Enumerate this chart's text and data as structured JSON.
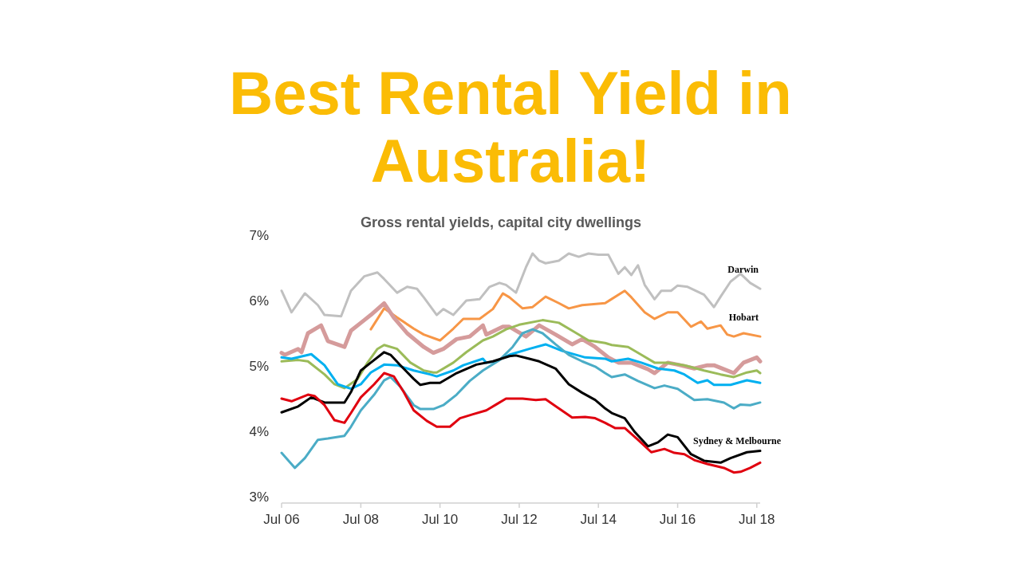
{
  "chart_data": {
    "type": "line",
    "title": "Best Rental Yield in Australia!",
    "subtitle": "Gross rental yields, capital city dwellings",
    "xlim": [
      "2006-07",
      "2018-08"
    ],
    "xticks": [
      {
        "value": "2006-07",
        "label": "Jul 06"
      },
      {
        "value": "2008-07",
        "label": "Jul 08"
      },
      {
        "value": "2010-07",
        "label": "Jul 10"
      },
      {
        "value": "2012-07",
        "label": "Jul 12"
      },
      {
        "value": "2014-07",
        "label": "Jul 14"
      },
      {
        "value": "2016-07",
        "label": "Jul 16"
      },
      {
        "value": "2018-07",
        "label": "Jul 18"
      }
    ],
    "ylim": [
      3,
      7
    ],
    "yticks": [
      {
        "value": 3,
        "label": "3%"
      },
      {
        "value": 4,
        "label": "4%"
      },
      {
        "value": 5,
        "label": "5%"
      },
      {
        "value": 6,
        "label": "6%"
      },
      {
        "value": 7,
        "label": "7%"
      }
    ],
    "grid": false,
    "marker": "none",
    "line_style": "solid",
    "annotations": [
      "Sydney & Melbourne"
    ],
    "series": [
      {
        "name": "Darwin",
        "color": "#c0c0c0",
        "x": [
          "2006-07",
          "2006-10",
          "2007-02",
          "2007-06",
          "2007-08",
          "2008-01",
          "2008-04",
          "2008-08",
          "2008-12",
          "2009-02",
          "2009-06",
          "2009-09",
          "2009-12",
          "2010-02",
          "2010-06",
          "2010-08",
          "2010-11",
          "2011-03",
          "2011-07",
          "2011-10",
          "2012-01",
          "2012-03",
          "2012-06",
          "2012-09",
          "2012-11",
          "2013-01",
          "2013-03",
          "2013-07",
          "2013-10",
          "2014-01",
          "2014-04",
          "2014-07",
          "2014-10",
          "2015-01",
          "2015-03",
          "2015-05",
          "2015-07",
          "2015-09",
          "2015-12",
          "2016-02",
          "2016-05",
          "2016-07",
          "2016-10",
          "2017-03",
          "2017-06",
          "2017-08",
          "2017-11",
          "2018-02",
          "2018-05",
          "2018-08"
        ],
        "values": [
          6.15,
          5.82,
          6.11,
          5.93,
          5.78,
          5.76,
          6.15,
          6.37,
          6.43,
          6.33,
          6.12,
          6.21,
          6.18,
          6.05,
          5.78,
          5.87,
          5.78,
          6.0,
          6.02,
          6.21,
          6.27,
          6.24,
          6.12,
          6.51,
          6.72,
          6.61,
          6.57,
          6.61,
          6.72,
          6.67,
          6.72,
          6.7,
          6.7,
          6.41,
          6.51,
          6.39,
          6.54,
          6.24,
          6.02,
          6.15,
          6.15,
          6.23,
          6.21,
          6.09,
          5.9,
          6.06,
          6.29,
          6.41,
          6.27,
          6.18
        ]
      },
      {
        "name": "Hobart",
        "color": "#f79646",
        "x": [
          "2008-10",
          "2009-02",
          "2009-06",
          "2009-11",
          "2010-02",
          "2010-07",
          "2010-11",
          "2011-02",
          "2011-07",
          "2011-11",
          "2012-02",
          "2012-04",
          "2012-08",
          "2012-11",
          "2013-03",
          "2013-07",
          "2013-10",
          "2014-02",
          "2014-09",
          "2015-03",
          "2015-05",
          "2015-09",
          "2015-12",
          "2016-04",
          "2016-07",
          "2016-11",
          "2017-02",
          "2017-04",
          "2017-08",
          "2017-10",
          "2017-12",
          "2018-03",
          "2018-08"
        ],
        "values": [
          5.56,
          5.88,
          5.74,
          5.57,
          5.48,
          5.39,
          5.57,
          5.72,
          5.72,
          5.87,
          6.11,
          6.05,
          5.88,
          5.9,
          6.06,
          5.96,
          5.88,
          5.93,
          5.96,
          6.15,
          6.05,
          5.82,
          5.72,
          5.82,
          5.82,
          5.6,
          5.68,
          5.57,
          5.62,
          5.48,
          5.45,
          5.5,
          5.45
        ]
      },
      {
        "color": "#d59b9b",
        "x": [
          "2006-07",
          "2006-08",
          "2006-12",
          "2007-01",
          "2007-03",
          "2007-07",
          "2007-09",
          "2008-02",
          "2008-04",
          "2008-08",
          "2008-10",
          "2009-02",
          "2009-05",
          "2009-09",
          "2010-02",
          "2010-05",
          "2010-08",
          "2010-12",
          "2011-04",
          "2011-08",
          "2011-09",
          "2012-02",
          "2012-04",
          "2012-09",
          "2013-01",
          "2013-06",
          "2013-11",
          "2014-02",
          "2014-06",
          "2014-10",
          "2015-01",
          "2015-05",
          "2015-10",
          "2015-12",
          "2016-04",
          "2016-07",
          "2016-12",
          "2017-04",
          "2017-06",
          "2017-09",
          "2017-12",
          "2018-03",
          "2018-07",
          "2018-08"
        ],
        "values": [
          5.2,
          5.17,
          5.26,
          5.21,
          5.5,
          5.62,
          5.38,
          5.29,
          5.54,
          5.7,
          5.78,
          5.96,
          5.74,
          5.5,
          5.29,
          5.2,
          5.26,
          5.41,
          5.45,
          5.62,
          5.48,
          5.6,
          5.6,
          5.45,
          5.62,
          5.48,
          5.33,
          5.41,
          5.29,
          5.13,
          5.05,
          5.05,
          4.95,
          4.89,
          5.05,
          5.02,
          4.96,
          5.01,
          5.01,
          4.95,
          4.89,
          5.05,
          5.13,
          5.07
        ]
      },
      {
        "color": "#9bbb59",
        "x": [
          "2006-07",
          "2006-12",
          "2007-03",
          "2007-08",
          "2007-11",
          "2008-02",
          "2008-06",
          "2008-09",
          "2008-12",
          "2009-02",
          "2009-06",
          "2009-10",
          "2010-02",
          "2010-05",
          "2010-06",
          "2010-11",
          "2011-03",
          "2011-08",
          "2011-11",
          "2012-03",
          "2012-07",
          "2013-02",
          "2013-07",
          "2013-11",
          "2014-04",
          "2014-09",
          "2014-11",
          "2015-04",
          "2015-08",
          "2015-12",
          "2016-04",
          "2016-09",
          "2017-03",
          "2017-08",
          "2017-12",
          "2018-04",
          "2018-07",
          "2018-08"
        ],
        "values": [
          5.07,
          5.09,
          5.07,
          4.87,
          4.72,
          4.66,
          4.8,
          5.05,
          5.26,
          5.32,
          5.26,
          5.05,
          4.93,
          4.9,
          4.9,
          5.05,
          5.21,
          5.39,
          5.45,
          5.56,
          5.63,
          5.7,
          5.66,
          5.54,
          5.39,
          5.35,
          5.32,
          5.29,
          5.17,
          5.05,
          5.05,
          5.01,
          4.93,
          4.87,
          4.83,
          4.9,
          4.93,
          4.89
        ]
      },
      {
        "color": "#00b0f0",
        "x": [
          "2006-07",
          "2006-10",
          "2007-04",
          "2007-08",
          "2007-12",
          "2008-04",
          "2008-07",
          "2008-10",
          "2009-02",
          "2009-06",
          "2009-11",
          "2010-04",
          "2010-06",
          "2010-11",
          "2011-02",
          "2011-08",
          "2011-09",
          "2011-12",
          "2012-04",
          "2012-10",
          "2013-03",
          "2013-08",
          "2014-03",
          "2014-09",
          "2014-11",
          "2015-04",
          "2015-08",
          "2016-01",
          "2016-06",
          "2016-09",
          "2017-01",
          "2017-04",
          "2017-06",
          "2017-11",
          "2018-04",
          "2018-08"
        ],
        "values": [
          5.13,
          5.11,
          5.18,
          5.01,
          4.72,
          4.65,
          4.72,
          4.9,
          5.02,
          5.01,
          4.93,
          4.87,
          4.84,
          4.93,
          5.01,
          5.11,
          5.05,
          5.07,
          5.17,
          5.26,
          5.33,
          5.23,
          5.13,
          5.11,
          5.07,
          5.11,
          5.05,
          4.96,
          4.93,
          4.87,
          4.74,
          4.78,
          4.71,
          4.71,
          4.78,
          4.74
        ]
      },
      {
        "color": "#4bacc6",
        "x": [
          "2006-07",
          "2006-11",
          "2007-02",
          "2007-06",
          "2007-09",
          "2008-02",
          "2008-04",
          "2008-07",
          "2008-11",
          "2009-02",
          "2009-04",
          "2009-07",
          "2009-11",
          "2010-01",
          "2010-05",
          "2010-08",
          "2010-12",
          "2011-04",
          "2011-08",
          "2012-01",
          "2012-05",
          "2012-08",
          "2012-11",
          "2013-02",
          "2013-06",
          "2013-10",
          "2014-02",
          "2014-06",
          "2014-09",
          "2014-11",
          "2015-03",
          "2015-07",
          "2015-12",
          "2016-03",
          "2016-07",
          "2016-12",
          "2017-04",
          "2017-09",
          "2017-12",
          "2018-02",
          "2018-05",
          "2018-08"
        ],
        "values": [
          3.67,
          3.44,
          3.59,
          3.87,
          3.89,
          3.93,
          4.07,
          4.32,
          4.56,
          4.78,
          4.83,
          4.68,
          4.4,
          4.34,
          4.34,
          4.4,
          4.56,
          4.77,
          4.93,
          5.09,
          5.29,
          5.5,
          5.56,
          5.5,
          5.33,
          5.17,
          5.07,
          4.99,
          4.89,
          4.83,
          4.87,
          4.77,
          4.66,
          4.7,
          4.65,
          4.48,
          4.49,
          4.44,
          4.35,
          4.41,
          4.4,
          4.44
        ]
      },
      {
        "color": "#000000",
        "x": [
          "2006-07",
          "2006-12",
          "2007-04",
          "2007-08",
          "2008-02",
          "2008-04",
          "2008-07",
          "2008-10",
          "2009-02",
          "2009-04",
          "2009-07",
          "2009-11",
          "2010-01",
          "2010-04",
          "2010-07",
          "2010-12",
          "2011-06",
          "2011-11",
          "2012-04",
          "2012-06",
          "2012-10",
          "2013-01",
          "2013-06",
          "2013-10",
          "2014-02",
          "2014-06",
          "2014-09",
          "2014-11",
          "2015-03",
          "2015-06",
          "2015-10",
          "2016-01",
          "2016-04",
          "2016-07",
          "2016-11",
          "2017-03",
          "2017-08",
          "2017-11",
          "2018-04",
          "2018-08"
        ],
        "values": [
          4.29,
          4.38,
          4.52,
          4.44,
          4.44,
          4.6,
          4.93,
          5.05,
          5.21,
          5.17,
          5.01,
          4.8,
          4.71,
          4.74,
          4.74,
          4.89,
          5.02,
          5.07,
          5.15,
          5.16,
          5.11,
          5.07,
          4.96,
          4.72,
          4.59,
          4.48,
          4.35,
          4.28,
          4.2,
          3.99,
          3.77,
          3.83,
          3.95,
          3.91,
          3.65,
          3.55,
          3.52,
          3.59,
          3.68,
          3.7
        ]
      },
      {
        "color": "#e0000f",
        "x": [
          "2006-07",
          "2006-10",
          "2007-03",
          "2007-05",
          "2007-08",
          "2007-11",
          "2008-02",
          "2008-04",
          "2008-07",
          "2008-11",
          "2009-02",
          "2009-05",
          "2009-08",
          "2009-11",
          "2010-03",
          "2010-06",
          "2010-10",
          "2011-01",
          "2011-05",
          "2011-09",
          "2011-12",
          "2012-03",
          "2012-08",
          "2012-12",
          "2013-03",
          "2013-07",
          "2013-11",
          "2014-03",
          "2014-06",
          "2014-09",
          "2014-12",
          "2015-03",
          "2015-07",
          "2015-11",
          "2016-03",
          "2016-06",
          "2016-09",
          "2016-12",
          "2017-04",
          "2017-09",
          "2017-12",
          "2018-02",
          "2018-05",
          "2018-08"
        ],
        "values": [
          4.5,
          4.46,
          4.56,
          4.54,
          4.4,
          4.17,
          4.13,
          4.28,
          4.52,
          4.72,
          4.89,
          4.84,
          4.6,
          4.32,
          4.16,
          4.07,
          4.07,
          4.2,
          4.26,
          4.32,
          4.41,
          4.5,
          4.5,
          4.48,
          4.49,
          4.35,
          4.21,
          4.22,
          4.2,
          4.13,
          4.05,
          4.05,
          3.87,
          3.68,
          3.73,
          3.67,
          3.65,
          3.56,
          3.5,
          3.44,
          3.37,
          3.38,
          3.44,
          3.52
        ]
      }
    ]
  }
}
